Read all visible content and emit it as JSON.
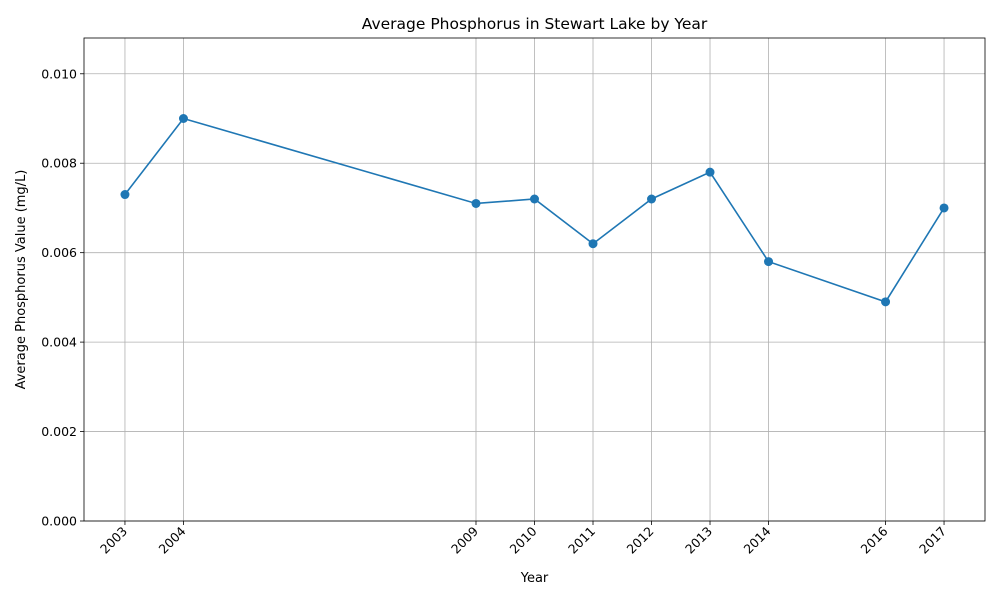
{
  "chart_data": {
    "type": "line",
    "title": "Average Phosphorus in Stewart Lake by Year",
    "xlabel": "Year",
    "ylabel": "Average Phosphorus Value (mg/L)",
    "x": [
      2003,
      2004,
      2009,
      2010,
      2011,
      2012,
      2013,
      2014,
      2016,
      2017
    ],
    "series": [
      {
        "values": [
          0.0073,
          0.009,
          0.0071,
          0.0072,
          0.0062,
          0.0072,
          0.0078,
          0.0058,
          0.0049,
          0.007
        ]
      }
    ],
    "xticks": [
      "2003",
      "2004",
      "2009",
      "2010",
      "2011",
      "2012",
      "2013",
      "2014",
      "2016",
      "2017"
    ],
    "yticks": [
      "0.000",
      "0.002",
      "0.004",
      "0.006",
      "0.008",
      "0.010"
    ],
    "ytick_values": [
      0,
      0.002,
      0.004,
      0.006,
      0.008,
      0.01
    ],
    "xlim": [
      2002.3,
      2017.7
    ],
    "ylim": [
      0,
      0.0108
    ],
    "grid": true,
    "marker": "circle",
    "color": "#1f77b4"
  }
}
